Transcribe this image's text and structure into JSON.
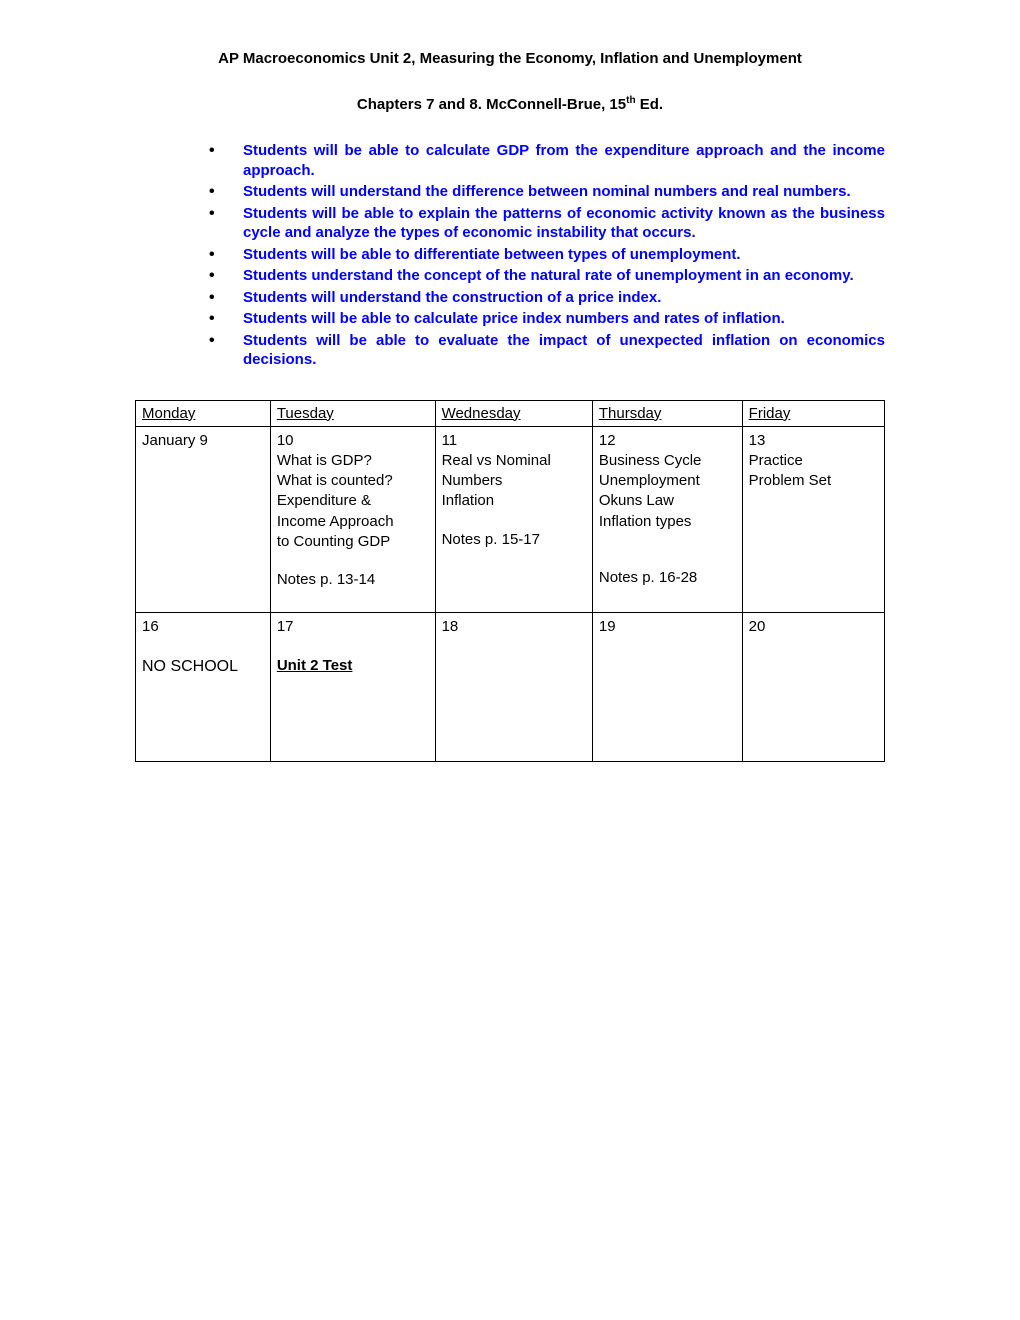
{
  "header": {
    "title_prefix": "AP Macroeconomics Unit 2",
    "title_suffix": ", Measuring the Economy, Inflation and Unemployment",
    "subtitle_pre": "Chapters 7 and 8. McConnell-Brue, 15",
    "subtitle_sup": "th",
    "subtitle_post": " Ed."
  },
  "objectives": [
    " Students will be able to calculate GDP from the expenditure approach and the income approach.",
    "Students will understand the difference between nominal numbers and real numbers.",
    "Students will be able to explain the patterns of economic activity known as the business cycle and analyze the types of economic instability that occurs.",
    "Students will be able to differentiate between types of unemployment.",
    "Students understand the concept of the natural rate of unemployment in an economy.",
    "Students will understand the construction of a price index.",
    "Students will be able to calculate price index numbers and rates of inflation.",
    "Students will be able to evaluate the impact of unexpected inflation on economics decisions."
  ],
  "schedule": {
    "columns": [
      "Monday",
      "Tuesday",
      "Wednesday",
      "Thursday",
      "Friday"
    ],
    "row1": {
      "mon": "January 9",
      "tue_date": "10",
      "tue_l1": "What is GDP?",
      "tue_l2": "What is counted?",
      "tue_l3": "Expenditure &",
      "tue_l4": "Income Approach",
      "tue_l5": "to Counting GDP",
      "tue_notes": "Notes p. 13-14",
      "wed_date": "11",
      "wed_l1": "Real vs Nominal",
      "wed_l2": "Numbers",
      "wed_l3": "Inflation",
      "wed_notes": "Notes p. 15-17",
      "thu_date": "12",
      "thu_l1": "Business Cycle",
      "thu_l2": "Unemployment",
      "thu_l3": "Okuns Law",
      "thu_l4": "Inflation types",
      "thu_notes": "Notes p. 16-28",
      "fri_date": "13",
      "fri_l1": "Practice",
      "fri_l2": "Problem Set"
    },
    "row2": {
      "mon_date": "16",
      "mon_text": "NO SCHOOL",
      "tue_date": "17",
      "tue_text": "Unit 2 Test",
      "wed_date": "18",
      "thu_date": "19",
      "fri_date": "20"
    }
  },
  "colors": {
    "objective_text": "#0000ff",
    "bullet": "#000000",
    "border": "#000000",
    "background": "#ffffff"
  }
}
